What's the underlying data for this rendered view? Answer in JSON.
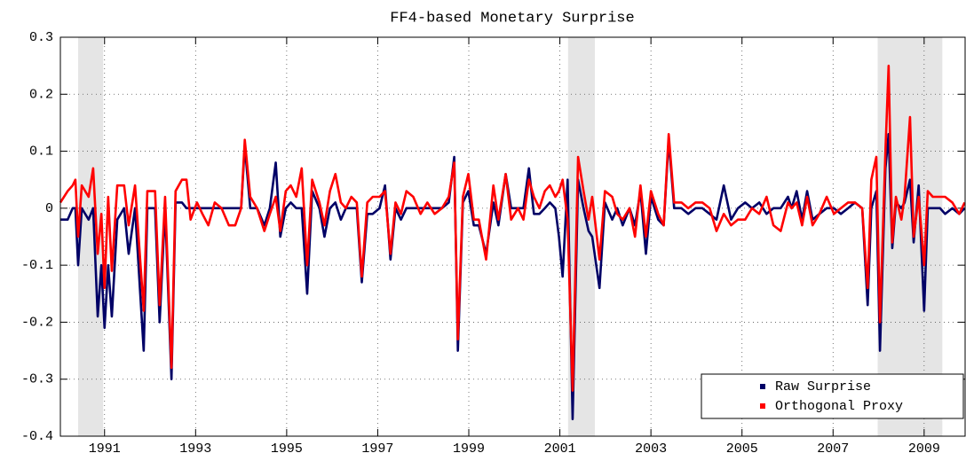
{
  "chart_data": {
    "type": "line",
    "title": "FF4-based Monetary Surprise",
    "xlim": [
      1990.03,
      2009.9
    ],
    "ylim": [
      -0.4,
      0.3
    ],
    "xticks": [
      1991,
      1993,
      1995,
      1997,
      1999,
      2001,
      2003,
      2005,
      2007,
      2009
    ],
    "yticks": [
      -0.4,
      -0.3,
      -0.2,
      -0.1,
      0,
      0.1,
      0.2,
      0.3
    ],
    "grid": true,
    "legend": "lower right",
    "shading": {
      "color": "#e5e5e5",
      "spans": [
        [
          1990.42,
          1990.97
        ],
        [
          2001.18,
          2001.77
        ],
        [
          2007.98,
          2009.4
        ]
      ]
    },
    "x": [
      1990.03,
      1990.19,
      1990.3,
      1990.36,
      1990.42,
      1990.5,
      1990.65,
      1990.75,
      1990.85,
      1990.93,
      1991.0,
      1991.08,
      1991.16,
      1991.28,
      1991.43,
      1991.53,
      1991.67,
      1991.86,
      1991.94,
      1992.11,
      1992.21,
      1992.33,
      1992.47,
      1992.56,
      1992.7,
      1992.8,
      1992.89,
      1993.03,
      1993.15,
      1993.28,
      1993.42,
      1993.57,
      1993.73,
      1993.87,
      1994.0,
      1994.08,
      1994.2,
      1994.35,
      1994.51,
      1994.63,
      1994.76,
      1994.86,
      1994.98,
      1995.09,
      1995.21,
      1995.33,
      1995.45,
      1995.56,
      1995.72,
      1995.83,
      1995.95,
      1996.07,
      1996.19,
      1996.3,
      1996.42,
      1996.54,
      1996.65,
      1996.77,
      1996.89,
      1997.04,
      1997.16,
      1997.28,
      1997.39,
      1997.51,
      1997.63,
      1997.78,
      1997.94,
      1998.09,
      1998.25,
      1998.41,
      1998.56,
      1998.68,
      1998.76,
      1998.87,
      1998.99,
      1999.11,
      1999.22,
      1999.38,
      1999.54,
      1999.65,
      1999.81,
      1999.93,
      2000.08,
      2000.2,
      2000.32,
      2000.43,
      2000.55,
      2000.67,
      2000.78,
      2000.9,
      2000.98,
      2001.06,
      2001.17,
      2001.28,
      2001.4,
      2001.52,
      2001.63,
      2001.71,
      2001.87,
      2001.99,
      2002.15,
      2002.26,
      2002.38,
      2002.53,
      2002.65,
      2002.77,
      2002.89,
      2003.0,
      2003.16,
      2003.28,
      2003.39,
      2003.51,
      2003.67,
      2003.82,
      2003.98,
      2004.13,
      2004.29,
      2004.44,
      2004.6,
      2004.76,
      2004.91,
      2005.07,
      2005.22,
      2005.38,
      2005.54,
      2005.69,
      2005.85,
      2006.01,
      2006.09,
      2006.2,
      2006.32,
      2006.43,
      2006.55,
      2006.7,
      2006.86,
      2007.02,
      2007.17,
      2007.33,
      2007.48,
      2007.64,
      2007.76,
      2007.84,
      2007.95,
      2008.03,
      2008.15,
      2008.22,
      2008.3,
      2008.38,
      2008.5,
      2008.57,
      2008.69,
      2008.77,
      2008.88,
      2009.0,
      2009.08,
      2009.19,
      2009.35,
      2009.46,
      2009.62,
      2009.77,
      2009.89
    ],
    "series": [
      {
        "name": "Raw Surprise",
        "color": "#000066",
        "values": [
          -0.02,
          -0.02,
          0,
          0,
          -0.1,
          0,
          -0.02,
          0,
          -0.19,
          -0.1,
          -0.21,
          -0.1,
          -0.19,
          -0.02,
          0,
          -0.08,
          0,
          -0.25,
          0,
          0,
          -0.2,
          0,
          -0.3,
          0.01,
          0.01,
          0,
          0,
          0,
          0,
          0,
          0,
          0,
          0,
          0,
          0,
          0.11,
          0,
          0,
          -0.03,
          0,
          0.08,
          -0.05,
          0,
          0.01,
          0,
          0,
          -0.15,
          0.03,
          0,
          -0.05,
          0,
          0.01,
          -0.02,
          0,
          0,
          0,
          -0.13,
          -0.01,
          -0.01,
          0,
          0.04,
          -0.09,
          0,
          -0.02,
          0,
          0,
          0,
          0,
          0,
          0,
          0.01,
          0.09,
          -0.25,
          0.01,
          0.03,
          -0.03,
          -0.03,
          -0.08,
          0.01,
          -0.03,
          0.06,
          0,
          0,
          0,
          0.07,
          -0.01,
          -0.01,
          0,
          0.01,
          0,
          -0.05,
          -0.12,
          0.05,
          -0.37,
          0.05,
          0,
          -0.04,
          -0.05,
          -0.14,
          0.01,
          -0.02,
          0,
          -0.03,
          0,
          -0.03,
          0.03,
          -0.08,
          0.02,
          -0.02,
          -0.03,
          0.12,
          0,
          0,
          -0.01,
          0,
          0,
          -0.01,
          -0.02,
          0.04,
          -0.02,
          0,
          0.01,
          0,
          0.01,
          -0.01,
          0,
          0,
          0.02,
          0,
          0.03,
          -0.02,
          0.03,
          -0.02,
          -0.01,
          0,
          0,
          -0.01,
          0,
          0.01,
          0,
          -0.17,
          0,
          0.03,
          -0.25,
          0.07,
          0.13,
          -0.07,
          0.01,
          0,
          0.01,
          0.05,
          -0.06,
          0.04,
          -0.18,
          0,
          0,
          0,
          -0.01,
          0,
          -0.01,
          0
        ]
      },
      {
        "name": "Orthogonal Proxy",
        "color": "#ff0000",
        "values": [
          0.01,
          0.03,
          0.04,
          0.05,
          -0.05,
          0.04,
          0.02,
          0.07,
          -0.08,
          -0.01,
          -0.14,
          0.02,
          -0.11,
          0.04,
          0.04,
          -0.03,
          0.04,
          -0.18,
          0.03,
          0.03,
          -0.17,
          0.02,
          -0.28,
          0.03,
          0.05,
          0.05,
          -0.02,
          0.01,
          -0.01,
          -0.03,
          0.01,
          0,
          -0.03,
          -0.03,
          0,
          0.12,
          0.02,
          0,
          -0.04,
          -0.01,
          0.02,
          -0.04,
          0.03,
          0.04,
          0.02,
          0.07,
          -0.1,
          0.05,
          0.01,
          -0.03,
          0.03,
          0.06,
          0.01,
          0,
          0.02,
          0.01,
          -0.12,
          0.01,
          0.02,
          0.02,
          0.03,
          -0.08,
          0.01,
          -0.01,
          0.03,
          0.02,
          -0.01,
          0.01,
          -0.01,
          0,
          0.02,
          0.08,
          -0.23,
          0.02,
          0.06,
          -0.02,
          -0.02,
          -0.09,
          0.04,
          -0.02,
          0.06,
          -0.02,
          0,
          -0.02,
          0.05,
          0.02,
          0,
          0.03,
          0.04,
          0.02,
          0.03,
          0.05,
          -0.02,
          -0.32,
          0.09,
          0.03,
          -0.02,
          0.02,
          -0.09,
          0.03,
          0.02,
          -0.01,
          -0.02,
          0,
          -0.05,
          0.04,
          -0.05,
          0.03,
          -0.01,
          -0.03,
          0.13,
          0.01,
          0.01,
          0,
          0.01,
          0.01,
          0,
          -0.04,
          -0.01,
          -0.03,
          -0.02,
          -0.02,
          0,
          -0.01,
          0.02,
          -0.03,
          -0.04,
          0.01,
          0,
          0.01,
          -0.03,
          0.02,
          -0.03,
          -0.01,
          0.02,
          -0.01,
          0,
          0.01,
          0.01,
          0,
          -0.14,
          0.05,
          0.09,
          -0.2,
          0.1,
          0.25,
          -0.06,
          0.02,
          -0.02,
          0.02,
          0.16,
          -0.05,
          0.02,
          -0.1,
          0.03,
          0.02,
          0.02,
          0.02,
          0.01,
          -0.01,
          0.01
        ]
      }
    ]
  }
}
